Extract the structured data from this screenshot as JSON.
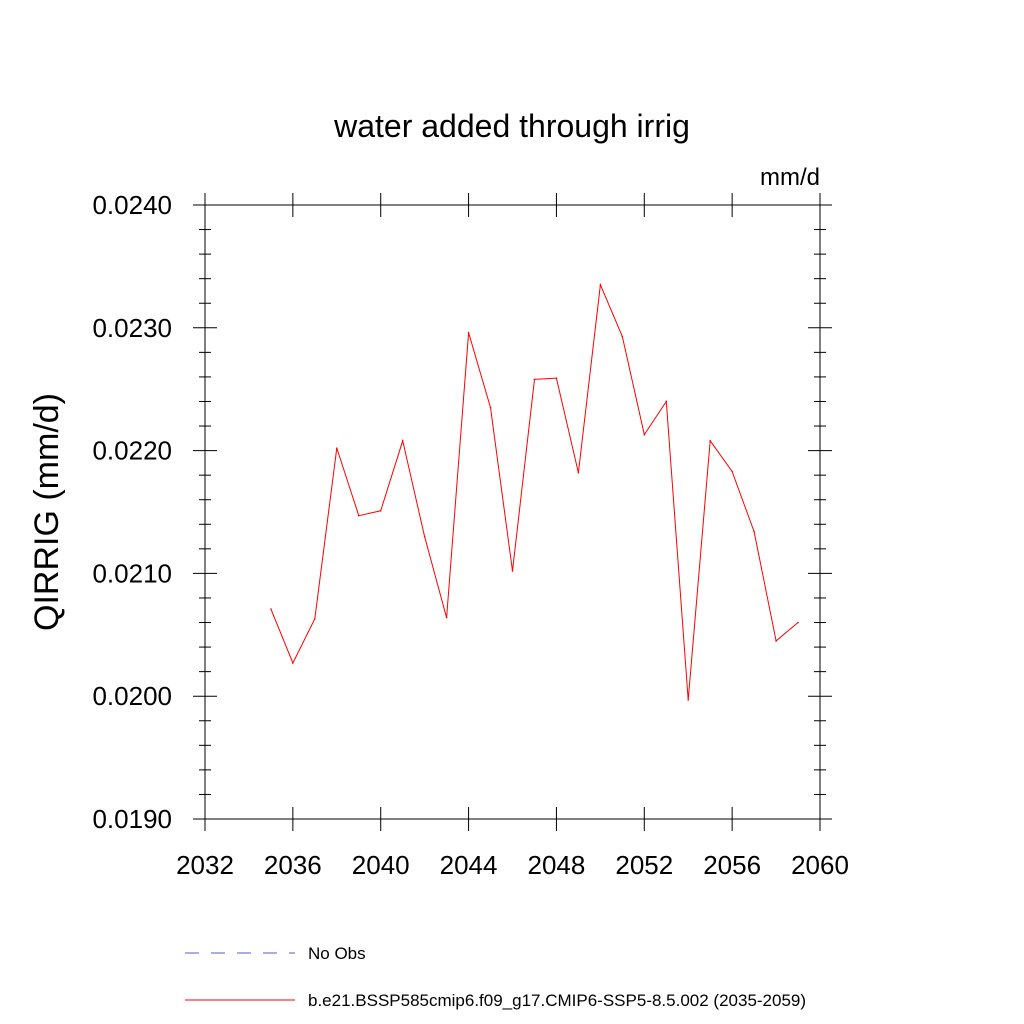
{
  "chart_data": {
    "type": "line",
    "title": "water added through irrig",
    "units": "mm/d",
    "ylabel": "QIRRIG  (mm/d)",
    "xlabel": "",
    "xlim": [
      2032,
      2060
    ],
    "ylim": [
      0.019,
      0.024
    ],
    "x_ticks": [
      "2032",
      "2036",
      "2040",
      "2044",
      "2048",
      "2052",
      "2056",
      "2060"
    ],
    "y_ticks": [
      "0.0190",
      "0.0200",
      "0.0210",
      "0.0220",
      "0.0230",
      "0.0240"
    ],
    "grid": false,
    "legend_placement": "bottom",
    "series": [
      {
        "name": "b.e21.BSSP585cmip6.f09_g17.CMIP6-SSP5-8.5.002 (2035-2059)",
        "color": "#ff0000",
        "style": "solid",
        "x": [
          2035,
          2036,
          2037,
          2038,
          2039,
          2040,
          2041,
          2042,
          2043,
          2044,
          2045,
          2046,
          2047,
          2048,
          2049,
          2050,
          2051,
          2052,
          2053,
          2054,
          2055,
          2056,
          2057,
          2058,
          2059
        ],
        "y": [
          0.02071,
          0.02027,
          0.02063,
          0.02202,
          0.02147,
          0.02151,
          0.02208,
          0.0213,
          0.02064,
          0.02296,
          0.02235,
          0.02102,
          0.02258,
          0.02259,
          0.02182,
          0.02335,
          0.02293,
          0.02213,
          0.0224,
          0.01997,
          0.02208,
          0.02183,
          0.02134,
          0.02045,
          0.0206
        ]
      }
    ],
    "legend": [
      {
        "label": "No Obs",
        "color": "#5b5bc8",
        "style": "dashed"
      },
      {
        "label": "b.e21.BSSP585cmip6.f09_g17.CMIP6-SSP5-8.5.002 (2035-2059)",
        "color": "#ff0000",
        "style": "solid"
      }
    ]
  }
}
